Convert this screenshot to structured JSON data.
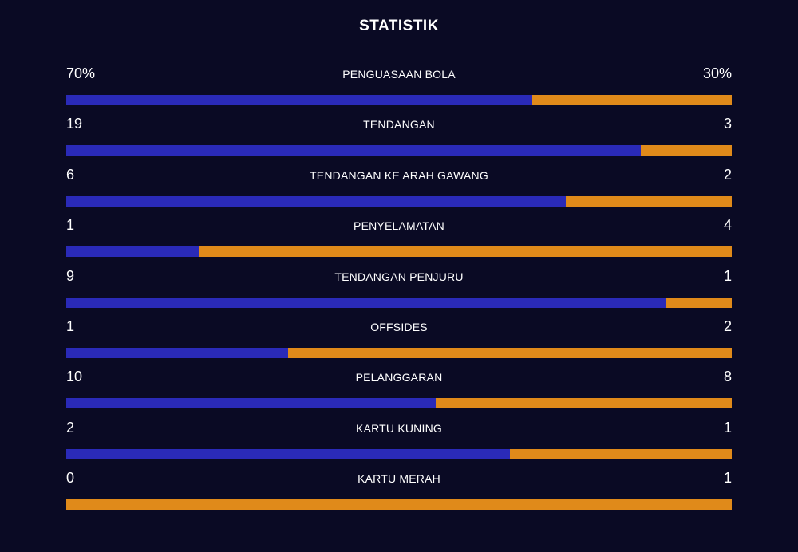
{
  "title": "STATISTIK",
  "colors": {
    "background": "#0a0a24",
    "home": "#2a2ab8",
    "away": "#e08a1a"
  },
  "stats": [
    {
      "label": "PENGUASAAN BOLA",
      "home": "70%",
      "away": "30%",
      "home_share": 0.7
    },
    {
      "label": "TENDANGAN",
      "home": "19",
      "away": "3",
      "home_share": 0.8636
    },
    {
      "label": "TENDANGAN KE ARAH GAWANG",
      "home": "6",
      "away": "2",
      "home_share": 0.75
    },
    {
      "label": "PENYELAMATAN",
      "home": "1",
      "away": "4",
      "home_share": 0.2
    },
    {
      "label": "TENDANGAN PENJURU",
      "home": "9",
      "away": "1",
      "home_share": 0.9
    },
    {
      "label": "OFFSIDES",
      "home": "1",
      "away": "2",
      "home_share": 0.3333
    },
    {
      "label": "PELANGGARAN",
      "home": "10",
      "away": "8",
      "home_share": 0.5556
    },
    {
      "label": "KARTU KUNING",
      "home": "2",
      "away": "1",
      "home_share": 0.6667
    },
    {
      "label": "KARTU MERAH",
      "home": "0",
      "away": "1",
      "home_share": 0.0
    }
  ]
}
